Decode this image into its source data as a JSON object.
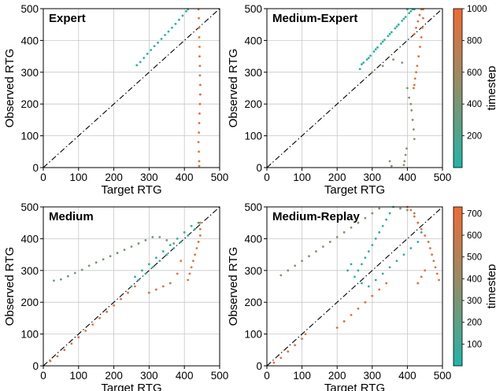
{
  "colors": {
    "low": "#1fb5a8",
    "high": "#ef6c34",
    "grid": "#c8c8c8",
    "diag": "#000000"
  },
  "chart_data": [
    {
      "type": "scatter",
      "title": "Expert",
      "xlabel": "Target RTG",
      "ylabel": "Observed RTG",
      "xlim": [
        0,
        500
      ],
      "ylim": [
        0,
        500
      ],
      "xticks": [
        "0",
        "100",
        "200",
        "300",
        "400",
        "500"
      ],
      "yticks": [
        "0",
        "100",
        "200",
        "300",
        "400",
        "500"
      ],
      "grid": true,
      "reference_line": "y = x (dash-dot)",
      "color_by": "timestep",
      "series": [
        {
          "timestep": 50,
          "points": [
            [
              265,
              322
            ],
            [
              275,
              332
            ],
            [
              285,
              345
            ],
            [
              295,
              358
            ],
            [
              305,
              370
            ],
            [
              315,
              382
            ],
            [
              325,
              393
            ],
            [
              335,
              405
            ],
            [
              345,
              417
            ],
            [
              355,
              428
            ],
            [
              365,
              440
            ],
            [
              375,
              452
            ],
            [
              385,
              465
            ],
            [
              395,
              478
            ],
            [
              405,
              492
            ],
            [
              410,
              498
            ]
          ]
        },
        {
          "timestep": 980,
          "points": [
            [
              440,
              498
            ],
            [
              441,
              470
            ],
            [
              442,
              440
            ],
            [
              442,
              410
            ],
            [
              443,
              380
            ],
            [
              443,
              350
            ],
            [
              444,
              320
            ],
            [
              444,
              290
            ],
            [
              445,
              260
            ],
            [
              445,
              230
            ],
            [
              444,
              200
            ],
            [
              443,
              170
            ],
            [
              442,
              140
            ],
            [
              441,
              110
            ],
            [
              440,
              80
            ],
            [
              441,
              50
            ],
            [
              442,
              20
            ],
            [
              442,
              5
            ]
          ]
        }
      ]
    },
    {
      "type": "scatter",
      "title": "Medium-Expert",
      "xlabel": "Target RTG",
      "ylabel": "Observed RTG",
      "xlim": [
        0,
        500
      ],
      "ylim": [
        0,
        500
      ],
      "xticks": [
        "0",
        "100",
        "200",
        "300",
        "400",
        "500"
      ],
      "yticks": [
        "0",
        "100",
        "200",
        "300",
        "400",
        "500"
      ],
      "grid": true,
      "reference_line": "y = x (dash-dot)",
      "color_by": "timestep",
      "colorbar": {
        "label": "timestep",
        "min": 0,
        "max": 1000,
        "ticks": [
          "200",
          "400",
          "600",
          "800",
          "1000"
        ]
      },
      "series": [
        {
          "timestep": 60,
          "points": [
            [
              265,
              310
            ],
            [
              275,
              330
            ],
            [
              285,
              340
            ],
            [
              295,
              352
            ],
            [
              305,
              365
            ],
            [
              315,
              378
            ],
            [
              325,
              390
            ],
            [
              335,
              402
            ],
            [
              345,
              414
            ],
            [
              355,
              426
            ],
            [
              365,
              438
            ],
            [
              375,
              450
            ],
            [
              385,
              462
            ],
            [
              395,
              474
            ],
            [
              405,
              486
            ],
            [
              415,
              498
            ],
            [
              270,
              325
            ],
            [
              290,
              345
            ],
            [
              310,
              372
            ],
            [
              330,
              396
            ],
            [
              350,
              420
            ],
            [
              370,
              444
            ],
            [
              390,
              468
            ],
            [
              410,
              492
            ],
            [
              400,
              498
            ],
            [
              420,
              498
            ]
          ]
        },
        {
          "timestep": 500,
          "points": [
            [
              300,
              300
            ],
            [
              330,
              320
            ],
            [
              360,
              340
            ],
            [
              385,
              330
            ],
            [
              400,
              250
            ],
            [
              405,
              220
            ],
            [
              410,
              200
            ],
            [
              412,
              180
            ],
            [
              415,
              150
            ],
            [
              418,
              120
            ],
            [
              420,
              90
            ],
            [
              398,
              60
            ],
            [
              395,
              40
            ],
            [
              392,
              20
            ],
            [
              390,
              8
            ],
            [
              350,
              20
            ],
            [
              355,
              5
            ]
          ]
        },
        {
          "timestep": 950,
          "points": [
            [
              420,
              420
            ],
            [
              425,
              440
            ],
            [
              430,
              460
            ],
            [
              435,
              480
            ],
            [
              440,
              498
            ],
            [
              445,
              498
            ],
            [
              445,
              470
            ],
            [
              443,
              440
            ],
            [
              440,
              410
            ],
            [
              436,
              380
            ],
            [
              432,
              350
            ],
            [
              428,
              320
            ],
            [
              425,
              300
            ],
            [
              422,
              280
            ],
            [
              420,
              260
            ],
            [
              418,
              250
            ]
          ]
        }
      ]
    },
    {
      "type": "scatter",
      "title": "Medium",
      "xlabel": "Target RTG",
      "ylabel": "Observed RTG",
      "xlim": [
        0,
        500
      ],
      "ylim": [
        0,
        500
      ],
      "xticks": [
        "0",
        "100",
        "200",
        "300",
        "400",
        "500"
      ],
      "yticks": [
        "0",
        "100",
        "200",
        "300",
        "400",
        "500"
      ],
      "grid": true,
      "reference_line": "y = x (dash-dot)",
      "color_by": "timestep",
      "series": [
        {
          "timestep": 80,
          "points": [
            [
              250,
              250
            ],
            [
              270,
              270
            ],
            [
              290,
              290
            ],
            [
              310,
              310
            ],
            [
              330,
              330
            ],
            [
              350,
              350
            ],
            [
              370,
              370
            ],
            [
              390,
              390
            ],
            [
              410,
              410
            ],
            [
              430,
              430
            ],
            [
              260,
              280
            ],
            [
              280,
              300
            ],
            [
              300,
              320
            ],
            [
              320,
              340
            ],
            [
              340,
              360
            ],
            [
              360,
              380
            ],
            [
              380,
              400
            ],
            [
              400,
              420
            ],
            [
              420,
              440
            ],
            [
              440,
              450
            ]
          ]
        },
        {
          "timestep": 400,
          "points": [
            [
              30,
              268
            ],
            [
              50,
              272
            ],
            [
              70,
              282
            ],
            [
              90,
              292
            ],
            [
              110,
              302
            ],
            [
              130,
              315
            ],
            [
              150,
              325
            ],
            [
              170,
              335
            ],
            [
              190,
              345
            ],
            [
              210,
              355
            ],
            [
              230,
              365
            ],
            [
              250,
              375
            ],
            [
              270,
              385
            ],
            [
              290,
              395
            ],
            [
              310,
              405
            ],
            [
              330,
              405
            ],
            [
              350,
              395
            ],
            [
              370,
              385
            ]
          ]
        },
        {
          "timestep": 900,
          "points": [
            [
              20,
              15
            ],
            [
              40,
              30
            ],
            [
              60,
              50
            ],
            [
              80,
              70
            ],
            [
              100,
              90
            ],
            [
              120,
              110
            ],
            [
              140,
              130
            ],
            [
              160,
              150
            ],
            [
              180,
              170
            ],
            [
              200,
              190
            ],
            [
              220,
              210
            ],
            [
              240,
              230
            ],
            [
              260,
              250
            ],
            [
              410,
              270
            ],
            [
              415,
              290
            ],
            [
              420,
              310
            ],
            [
              425,
              330
            ],
            [
              430,
              350
            ],
            [
              435,
              370
            ],
            [
              440,
              390
            ],
            [
              445,
              410
            ],
            [
              445,
              430
            ],
            [
              445,
              450
            ],
            [
              300,
              230
            ],
            [
              320,
              240
            ],
            [
              340,
              250
            ],
            [
              360,
              260
            ],
            [
              380,
              290
            ],
            [
              390,
              330
            ]
          ]
        }
      ]
    },
    {
      "type": "scatter",
      "title": "Medium-Replay",
      "xlabel": "Target RTG",
      "ylabel": "Observed RTG",
      "xlim": [
        0,
        500
      ],
      "ylim": [
        0,
        500
      ],
      "xticks": [
        "0",
        "100",
        "200",
        "300",
        "400",
        "500"
      ],
      "yticks": [
        "0",
        "100",
        "200",
        "300",
        "400",
        "500"
      ],
      "grid": true,
      "reference_line": "y = x (dash-dot)",
      "color_by": "timestep",
      "colorbar": {
        "label": "timestep",
        "min": 0,
        "max": 730,
        "ticks": [
          "100",
          "200",
          "300",
          "400",
          "500",
          "600",
          "700"
        ]
      },
      "series": [
        {
          "timestep": 50,
          "points": [
            [
              250,
              280
            ],
            [
              260,
              300
            ],
            [
              270,
              320
            ],
            [
              280,
              340
            ],
            [
              290,
              360
            ],
            [
              300,
              380
            ],
            [
              310,
              400
            ],
            [
              320,
              420
            ],
            [
              330,
              440
            ],
            [
              340,
              460
            ],
            [
              350,
              480
            ],
            [
              360,
              500
            ],
            [
              230,
              300
            ],
            [
              240,
              320
            ],
            [
              270,
              260
            ],
            [
              290,
              250
            ],
            [
              310,
              270
            ],
            [
              330,
              290
            ],
            [
              350,
              310
            ],
            [
              370,
              330
            ],
            [
              390,
              350
            ],
            [
              410,
              370
            ],
            [
              430,
              390
            ],
            [
              440,
              420
            ]
          ]
        },
        {
          "timestep": 360,
          "points": [
            [
              40,
              285
            ],
            [
              60,
              300
            ],
            [
              80,
              315
            ],
            [
              100,
              330
            ],
            [
              120,
              345
            ],
            [
              140,
              360
            ],
            [
              160,
              375
            ],
            [
              180,
              390
            ],
            [
              200,
              405
            ],
            [
              220,
              420
            ],
            [
              240,
              435
            ],
            [
              260,
              450
            ],
            [
              280,
              465
            ],
            [
              300,
              480
            ],
            [
              320,
              495
            ],
            [
              380,
              495
            ],
            [
              400,
              490
            ],
            [
              420,
              480
            ]
          ]
        },
        {
          "timestep": 700,
          "points": [
            [
              20,
              10
            ],
            [
              40,
              25
            ],
            [
              60,
              45
            ],
            [
              80,
              65
            ],
            [
              100,
              85
            ],
            [
              110,
              100
            ],
            [
              200,
              120
            ],
            [
              220,
              140
            ],
            [
              240,
              160
            ],
            [
              260,
              180
            ],
            [
              280,
              200
            ],
            [
              300,
              220
            ],
            [
              320,
              240
            ],
            [
              340,
              260
            ],
            [
              400,
              500
            ],
            [
              410,
              490
            ],
            [
              420,
              470
            ],
            [
              430,
              450
            ],
            [
              440,
              430
            ],
            [
              450,
              410
            ],
            [
              460,
              390
            ],
            [
              465,
              370
            ],
            [
              470,
              350
            ],
            [
              475,
              330
            ],
            [
              480,
              310
            ],
            [
              485,
              290
            ],
            [
              490,
              270
            ],
            [
              450,
              300
            ],
            [
              440,
              280
            ],
            [
              430,
              260
            ]
          ]
        }
      ]
    }
  ]
}
